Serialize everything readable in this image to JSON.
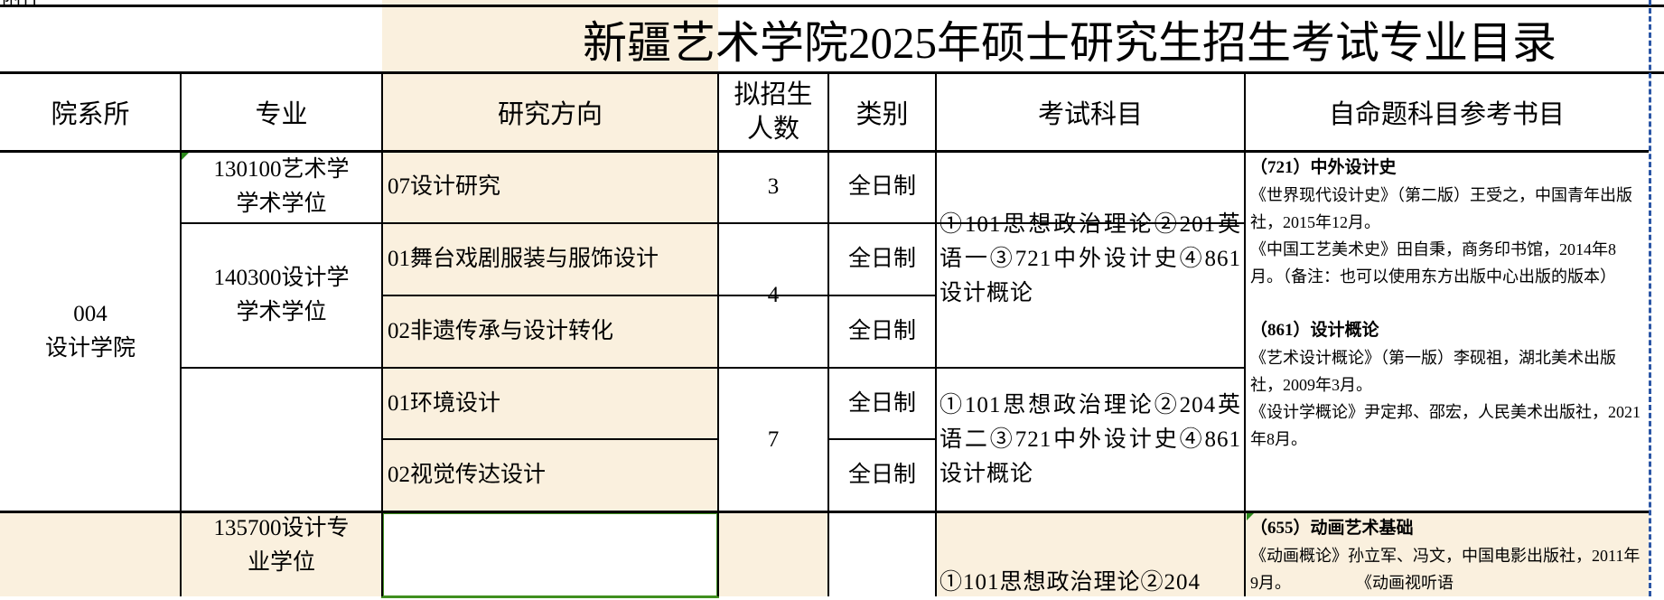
{
  "attachment_label": "附件",
  "title": "新疆艺术学院2025年硕士研究生招生考试专业目录",
  "headers": {
    "dept": "院系所",
    "major": "专业",
    "direction": "研究方向",
    "quota": "拟招生人数",
    "type": "类别",
    "subjects": "考试科目",
    "books": "自命题科目参考书目"
  },
  "dept": {
    "code": "004",
    "name": "设计学院"
  },
  "majors": [
    {
      "name": "130100艺术学学术学位"
    },
    {
      "name": "140300设计学学术学位"
    },
    {
      "name": ""
    },
    {
      "name": "135700设计专业学位"
    }
  ],
  "directions": [
    "07设计研究",
    "01舞台戏剧服装与服饰设计",
    "02非遗传承与设计转化",
    "01环境设计",
    "02视觉传达设计",
    ""
  ],
  "quotas": [
    "3",
    "4",
    "7"
  ],
  "types": [
    "全日制",
    "全日制",
    "全日制",
    "全日制",
    "全日制"
  ],
  "subjects": [
    "①101思想政治理论②201英语一③721中外设计史④861设计概论",
    "①101思想政治理论②204英语二③721中外设计史④861设计概论",
    "①101思想政治理论②204"
  ],
  "books": [
    {
      "title": "（721）中外设计史",
      "items": [
        "《世界现代设计史》（第二版）王受之，中国青年出版社，2015年12月。",
        "《中国工艺美术史》田自秉，商务印书馆，2014年8月。（备注：也可以使用东方出版中心出版的版本）"
      ]
    },
    {
      "title": "（861）设计概论",
      "items": [
        "《艺术设计概论》（第一版）李砚祖，湖北美术出版社，2009年3月。",
        "《设计学概论》尹定邦、邵宏，人民美术出版社，2021年8月。"
      ]
    },
    {
      "title": "（655）动画艺术基础",
      "items": [
        "《动画概论》孙立军、冯文，中国电影出版社，2011年9月。　　　　　《动画视听语"
      ]
    }
  ],
  "colors": {
    "highlight": "#faf0de",
    "selection": "#3f8f1f",
    "page_break": "#2a55a5"
  }
}
